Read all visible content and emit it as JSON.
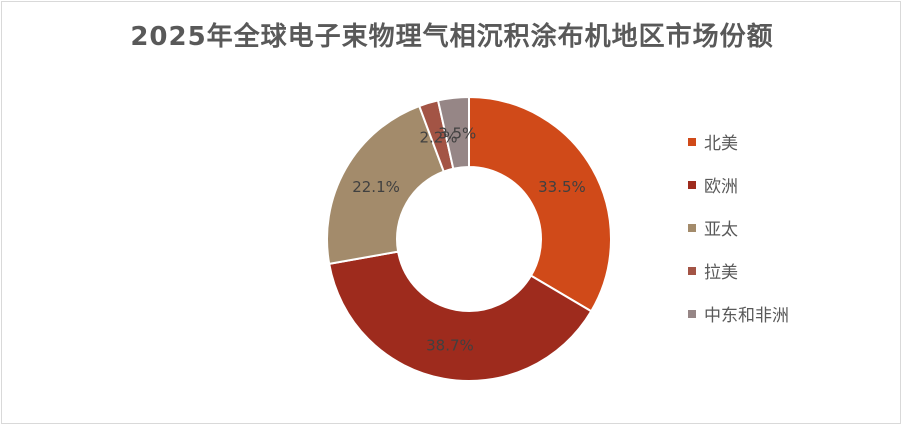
{
  "chart_data": {
    "type": "pie",
    "variant": "donut",
    "title": "2025年全球电子束物理气相沉积涂布机地区市场份额",
    "categories": [
      "北美",
      "欧洲",
      "亚太",
      "拉美",
      "中东和非洲"
    ],
    "values": [
      33.5,
      38.7,
      22.1,
      2.2,
      3.5
    ],
    "labels": [
      "33.5%",
      "38.7%",
      "22.1%",
      "2.2%",
      "3.5%"
    ],
    "colors": [
      "#D04A19",
      "#9E2B1D",
      "#A38B6B",
      "#A35445",
      "#968686"
    ],
    "legend_position": "right"
  }
}
